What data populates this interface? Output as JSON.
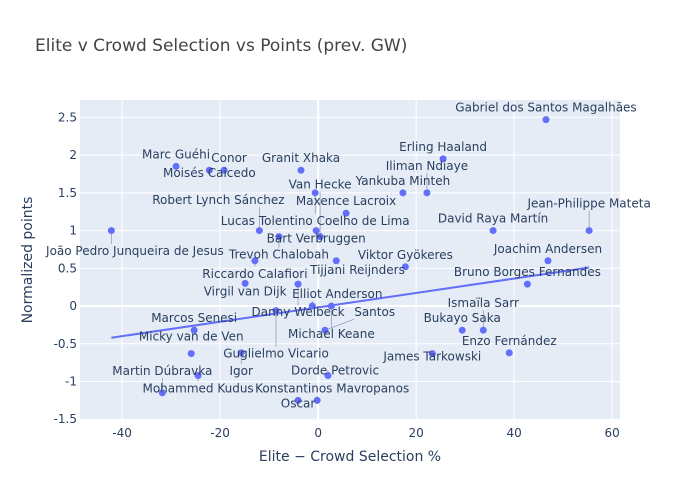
{
  "chart_data": {
    "type": "scatter",
    "title": "Elite v Crowd Selection vs Points (prev. GW)",
    "xlabel": "Elite − Crowd Selection %",
    "ylabel": "Normalized points",
    "xlim": [
      -48.6,
      61.6
    ],
    "ylim": [
      -1.51,
      2.73
    ],
    "xticks": [
      -40,
      -20,
      0,
      20,
      40,
      60
    ],
    "yticks": [
      -1.5,
      -1,
      -0.5,
      0,
      0.5,
      1,
      1.5,
      2,
      2.5
    ],
    "grid": true,
    "colors": {
      "marker": "#636efa",
      "trendline": "#636efa",
      "plot_bg": "#e5ecf6",
      "text": "#2a3f5f"
    },
    "trendline": {
      "x": [
        -42.2,
        55.3
      ],
      "y": [
        -0.42,
        0.51
      ]
    },
    "points": [
      {
        "name": "Gabriel dos Santos Magalhães",
        "x": 46.5,
        "y": 2.47
      },
      {
        "name": "Erling Haaland",
        "x": 25.5,
        "y": 1.95
      },
      {
        "name": "Yankuba Minteh",
        "x": 17.3,
        "y": 1.5
      },
      {
        "name": "Iliman Ndiaye",
        "x": 22.2,
        "y": 1.5
      },
      {
        "name": "Maxence Lacroix",
        "x": 5.7,
        "y": 1.23
      },
      {
        "name": "David Raya Martín",
        "x": 35.7,
        "y": 1.0
      },
      {
        "name": "Jean-Philippe Mateta",
        "x": 55.3,
        "y": 1.0
      },
      {
        "name": "Joachim Andersen",
        "x": 46.9,
        "y": 0.6
      },
      {
        "name": "Viktor Gyökeres",
        "x": 17.8,
        "y": 0.52
      },
      {
        "name": "Bruno Borges Fernandes",
        "x": 42.7,
        "y": 0.29
      },
      {
        "name": "Lucas Tolentino Coelho de Lima",
        "x": -0.6,
        "y": 1.5
      },
      {
        "name": "Granit Xhaka",
        "x": -3.5,
        "y": 1.8
      },
      {
        "name": "Marc Guéhi",
        "x": -29.0,
        "y": 1.85
      },
      {
        "name": "Moisés Caicedo",
        "x": -22.2,
        "y": 1.8
      },
      {
        "name": "Conor",
        "x": -19.2,
        "y": 1.8
      },
      {
        "name": "João Pedro Junqueira de Jesus",
        "x": -42.2,
        "y": 1.0
      },
      {
        "name": "Robert Lynch Sánchez",
        "x": -12.0,
        "y": 1.0
      },
      {
        "name": "Bart Verbruggen",
        "x": -0.4,
        "y": 1.0
      },
      {
        "name": "Trevoh Chalobah",
        "x": -8.0,
        "y": 0.92
      },
      {
        "name": "Van Hecke",
        "x": 0.4,
        "y": 0.92
      },
      {
        "name": "Riccardo Calafiori",
        "x": -12.9,
        "y": 0.6
      },
      {
        "name": "Tijjani Reijnders",
        "x": 3.7,
        "y": 0.6
      },
      {
        "name": "Virgil van Dijk",
        "x": -14.9,
        "y": 0.3
      },
      {
        "name": "Danny Welbeck",
        "x": -4.1,
        "y": 0.29
      },
      {
        "name": "Elliot Anderson",
        "x": -1.2,
        "y": 0.0
      },
      {
        "name": "Michael Keane",
        "x": 2.7,
        "y": 0.0
      },
      {
        "name": "Guglielmo Vicario",
        "x": -8.6,
        "y": -0.06
      },
      {
        "name": "Marcos Senesi",
        "x": -25.3,
        "y": -0.32
      },
      {
        "name": "Santos",
        "x": 1.4,
        "y": -0.32
      },
      {
        "name": "Bukayo Saka",
        "x": 29.4,
        "y": -0.32
      },
      {
        "name": "Ismaïla Sarr",
        "x": 33.7,
        "y": -0.32
      },
      {
        "name": "Enzo Fernández",
        "x": 39.0,
        "y": -0.62
      },
      {
        "name": "James Tarkowski",
        "x": 23.3,
        "y": -0.63
      },
      {
        "name": "Micky van de Ven",
        "x": -25.9,
        "y": -0.63
      },
      {
        "name": "Igor",
        "x": -15.7,
        "y": -0.62
      },
      {
        "name": "Mohammed Kudus",
        "x": -24.5,
        "y": -0.92
      },
      {
        "name": "Martin Dúbravka",
        "x": -31.8,
        "y": -1.15
      },
      {
        "name": "Dorde Petrovic",
        "x": 2.0,
        "y": -0.92
      },
      {
        "name": "Konstantinos Mavropanos",
        "x": -0.2,
        "y": -1.25
      },
      {
        "name": "Oscar",
        "x": -4.1,
        "y": -1.25
      }
    ]
  }
}
